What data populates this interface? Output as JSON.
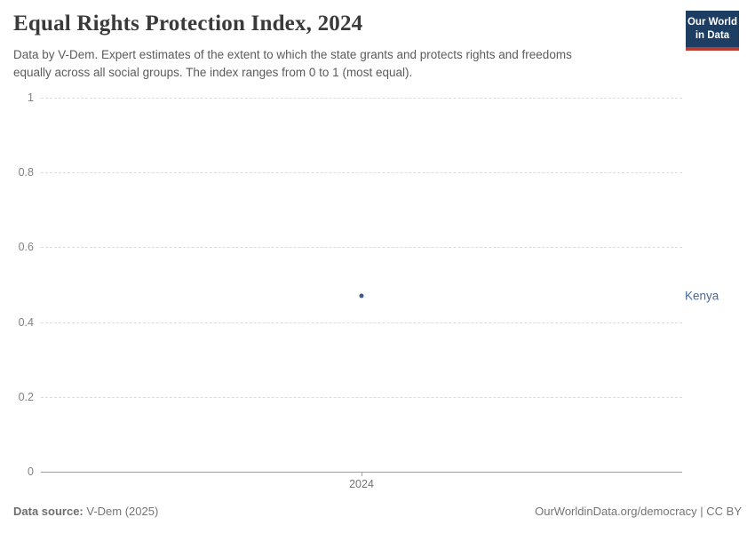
{
  "header": {
    "title": "Equal Rights Protection Index, 2024",
    "subtitle_lines": [
      "Data by V-Dem. Expert estimates of the extent to which the state grants and protects rights and freedoms",
      "equally across all social groups. The index ranges from 0 to 1 (most equal)."
    ],
    "logo": {
      "line1": "Our World",
      "line2": "in Data"
    }
  },
  "chart_data": {
    "type": "scatter",
    "title": "Equal Rights Protection Index, 2024",
    "x": [
      2024
    ],
    "series": [
      {
        "name": "Kenya",
        "values": [
          0.47
        ]
      }
    ],
    "xlabel": "",
    "ylabel": "",
    "ylim": [
      0,
      1
    ],
    "yticks": [
      0,
      0.2,
      0.4,
      0.6,
      0.8,
      1
    ],
    "ytick_labels": [
      "0",
      "0.2",
      "0.4",
      "0.6",
      "0.8",
      "1"
    ],
    "xtick_labels": [
      "2024"
    ],
    "grid": "horizontal dashed gridlines, solid zero baseline",
    "legend_position": "entity label at right of plot"
  },
  "colors": {
    "point": "#3d5a8f",
    "entity_label": "#4c6a9c",
    "logo_navy": "#1d3d63",
    "logo_red": "#b93c32",
    "gridline": "#dcdcdc",
    "axis_line": "#9e9e9e"
  },
  "footer": {
    "source_label": "Data source:",
    "source_value": " V-Dem (2025)",
    "right_text": "OurWorldinData.org/democracy | CC BY"
  }
}
